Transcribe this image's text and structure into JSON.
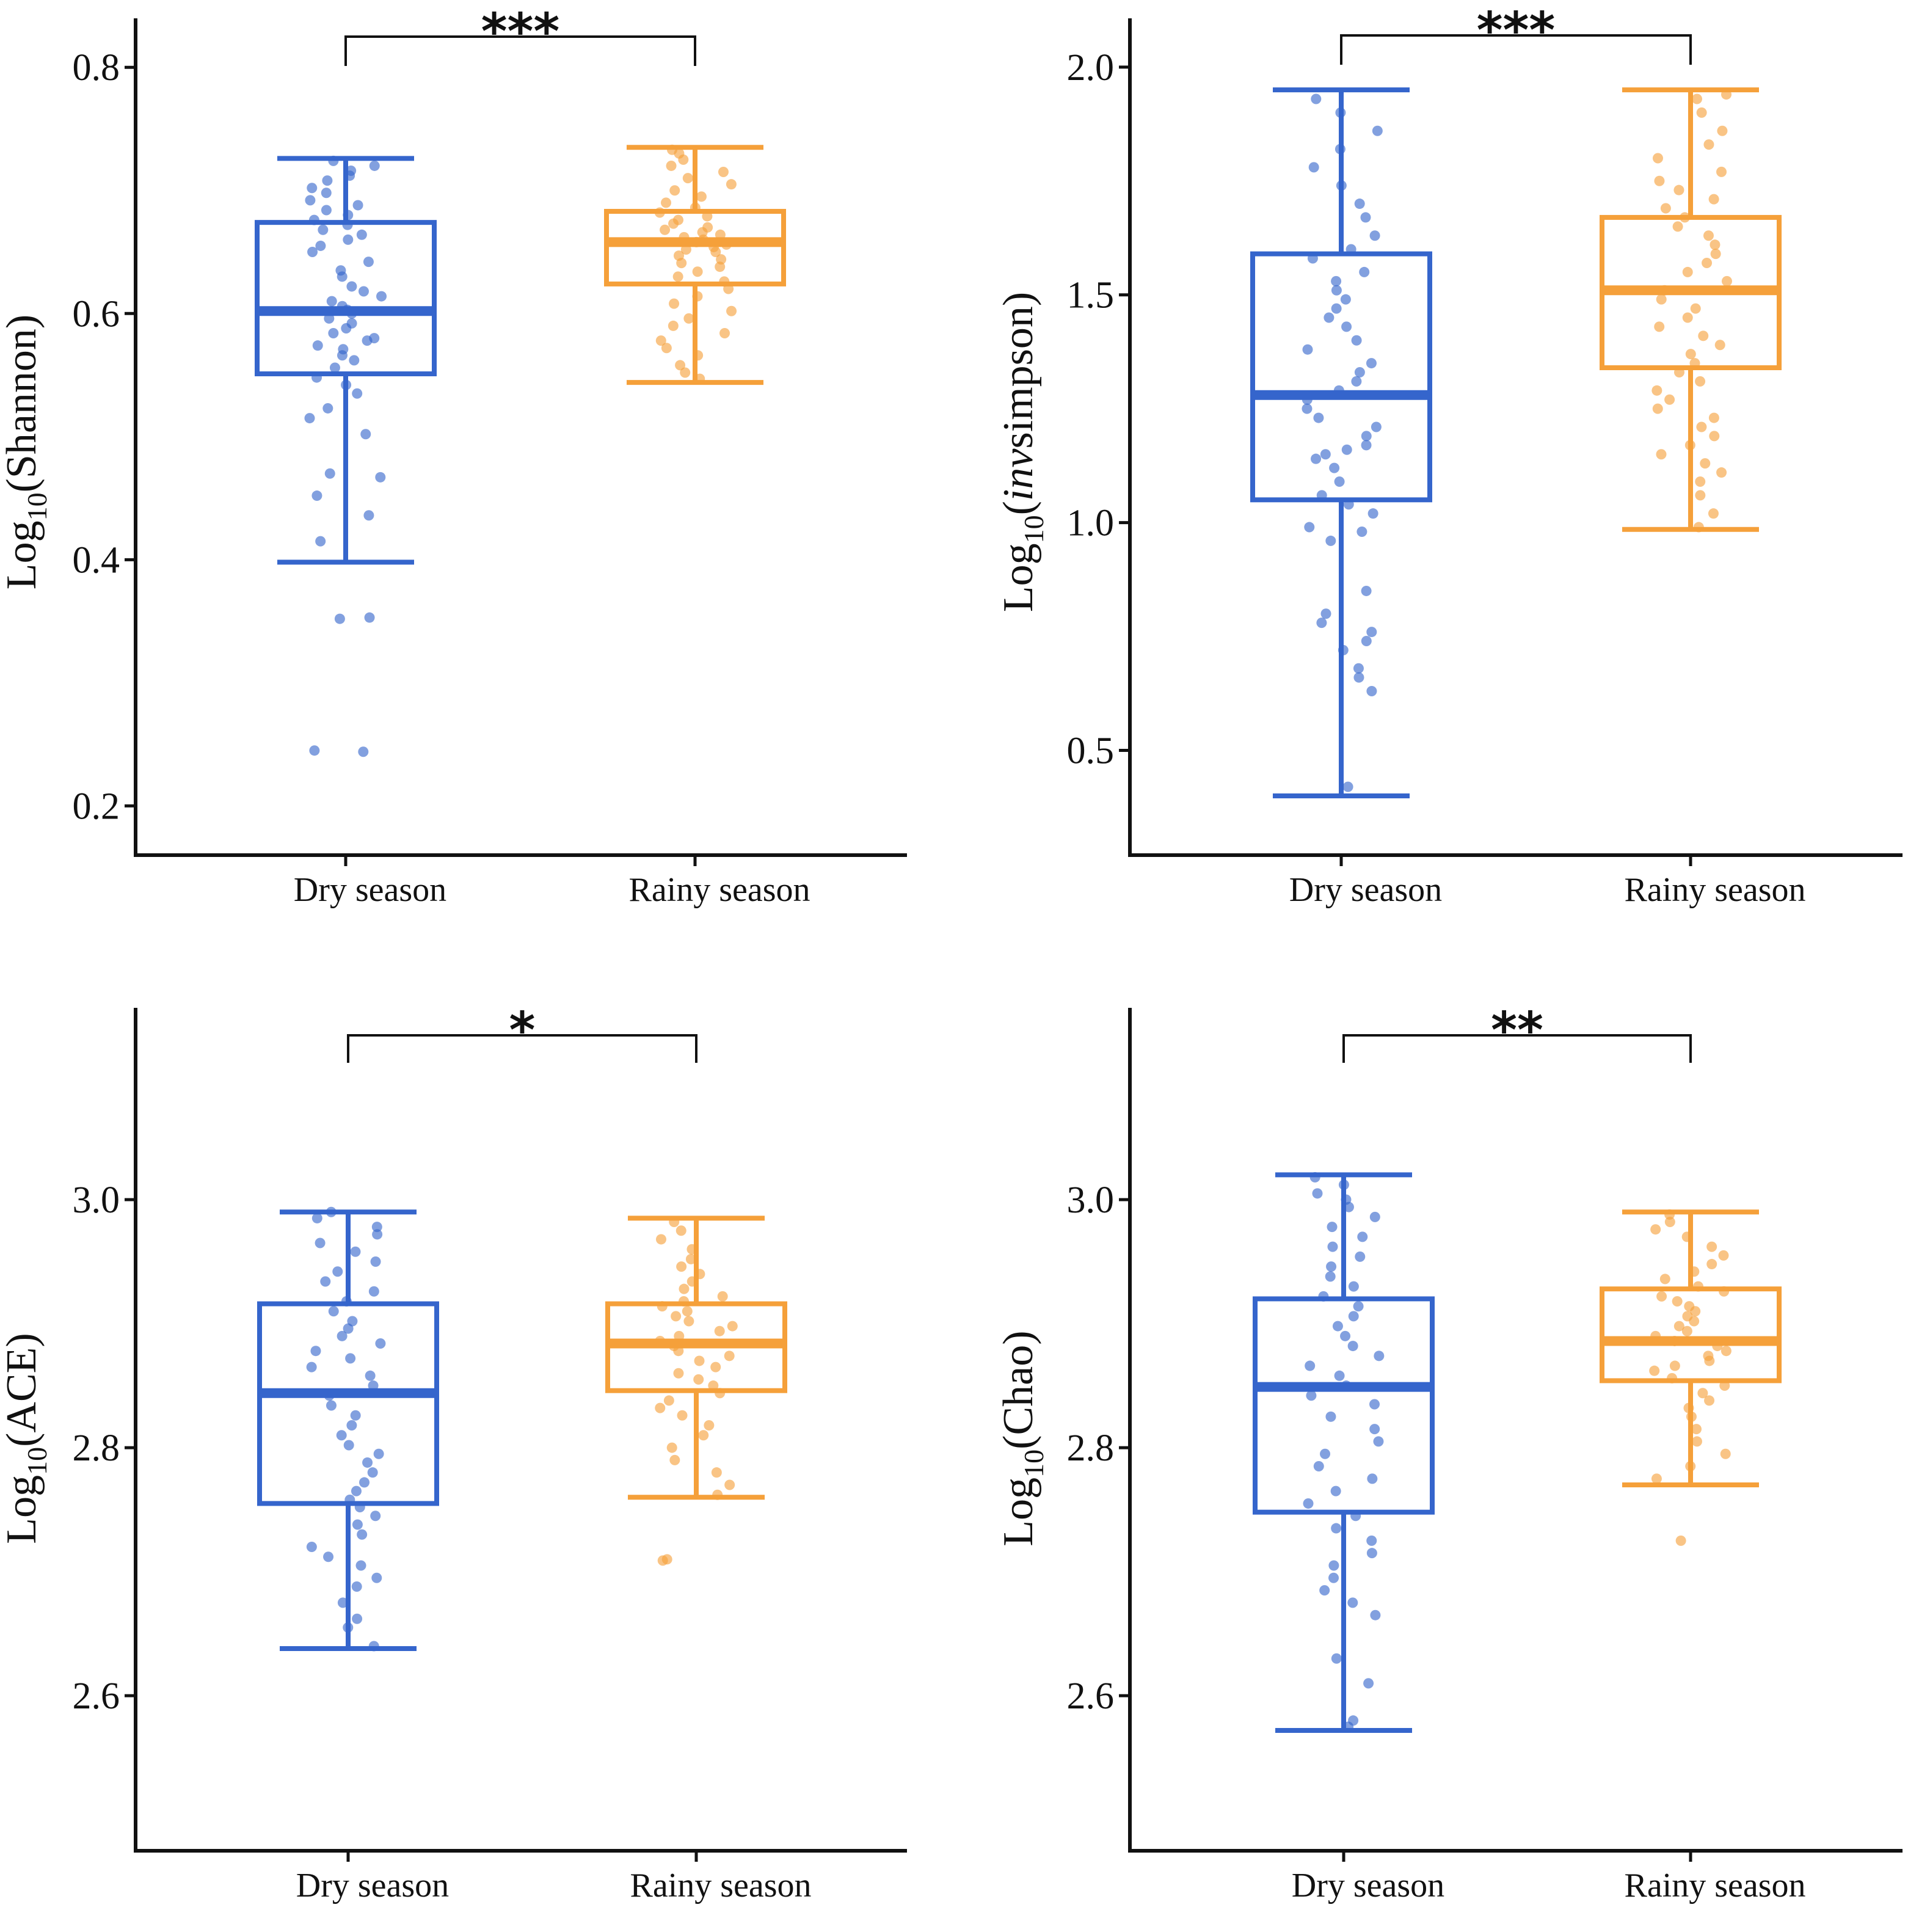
{
  "colors": {
    "dry": "#3565cc",
    "rainy": "#f5a03a",
    "axis": "#111111"
  },
  "chart_data": [
    {
      "type": "box",
      "ylabel_prefix": "Log",
      "ylabel_sub": "10",
      "ylabel_name": "(Shannon)",
      "ylabel_italic": false,
      "categories": [
        "Dry season",
        "Rainy season"
      ],
      "ylim": [
        0.16,
        0.815
      ],
      "yticks": [
        0.2,
        0.4,
        0.6,
        0.8
      ],
      "ytick_labels": [
        "0.2",
        "0.4",
        "0.6",
        "0.8"
      ],
      "significance": "***",
      "series": [
        {
          "name": "Dry season",
          "whisker_low": 0.398,
          "q1": 0.551,
          "median": 0.602,
          "q3": 0.674,
          "whisker_high": 0.726,
          "points": [
            0.244,
            0.245,
            0.352,
            0.353,
            0.415,
            0.436,
            0.452,
            0.467,
            0.47,
            0.502,
            0.515,
            0.523,
            0.535,
            0.542,
            0.548,
            0.556,
            0.562,
            0.566,
            0.571,
            0.574,
            0.578,
            0.58,
            0.584,
            0.588,
            0.592,
            0.596,
            0.6,
            0.603,
            0.606,
            0.61,
            0.614,
            0.618,
            0.622,
            0.63,
            0.635,
            0.642,
            0.65,
            0.655,
            0.66,
            0.664,
            0.668,
            0.672,
            0.676,
            0.68,
            0.684,
            0.688,
            0.692,
            0.698,
            0.702,
            0.708,
            0.712,
            0.716,
            0.72,
            0.724
          ]
        },
        {
          "name": "Rainy season",
          "whisker_low": 0.544,
          "q1": 0.624,
          "median": 0.658,
          "q3": 0.683,
          "whisker_high": 0.735,
          "points": [
            0.547,
            0.552,
            0.558,
            0.566,
            0.572,
            0.578,
            0.584,
            0.59,
            0.596,
            0.602,
            0.608,
            0.614,
            0.62,
            0.626,
            0.63,
            0.634,
            0.638,
            0.641,
            0.644,
            0.647,
            0.65,
            0.652,
            0.654,
            0.656,
            0.658,
            0.66,
            0.662,
            0.664,
            0.666,
            0.668,
            0.67,
            0.673,
            0.676,
            0.679,
            0.682,
            0.686,
            0.69,
            0.695,
            0.7,
            0.705,
            0.71,
            0.715,
            0.72,
            0.725,
            0.73,
            0.733
          ]
        }
      ]
    },
    {
      "type": "box",
      "ylabel_prefix": "Log",
      "ylabel_sub": "10",
      "ylabel_name": "(invsimpson)",
      "ylabel_italic": true,
      "categories": [
        "Dry season",
        "Rainy season"
      ],
      "ylim": [
        0.27,
        2.04
      ],
      "yticks": [
        0.5,
        1.0,
        1.5,
        2.0
      ],
      "ytick_labels": [
        "0.5",
        "1.0",
        "1.5",
        "2.0"
      ],
      "significance": "***",
      "series": [
        {
          "name": "Dry season",
          "whisker_low": 0.4,
          "q1": 1.05,
          "median": 1.28,
          "q3": 1.59,
          "whisker_high": 1.95,
          "points": [
            0.42,
            0.63,
            0.66,
            0.68,
            0.72,
            0.74,
            0.76,
            0.78,
            0.8,
            0.85,
            0.96,
            0.98,
            0.99,
            1.02,
            1.04,
            1.06,
            1.09,
            1.12,
            1.14,
            1.15,
            1.16,
            1.17,
            1.19,
            1.21,
            1.23,
            1.25,
            1.27,
            1.29,
            1.31,
            1.33,
            1.35,
            1.38,
            1.4,
            1.43,
            1.45,
            1.47,
            1.49,
            1.51,
            1.53,
            1.55,
            1.58,
            1.6,
            1.63,
            1.67,
            1.7,
            1.74,
            1.78,
            1.82,
            1.86,
            1.9,
            1.93
          ]
        },
        {
          "name": "Rainy season",
          "whisker_low": 0.985,
          "q1": 1.34,
          "median": 1.51,
          "q3": 1.67,
          "whisker_high": 1.95,
          "points": [
            0.99,
            1.02,
            1.06,
            1.09,
            1.11,
            1.13,
            1.15,
            1.17,
            1.19,
            1.21,
            1.23,
            1.25,
            1.27,
            1.29,
            1.31,
            1.33,
            1.35,
            1.37,
            1.39,
            1.41,
            1.43,
            1.45,
            1.47,
            1.49,
            1.51,
            1.53,
            1.55,
            1.57,
            1.59,
            1.61,
            1.63,
            1.65,
            1.67,
            1.69,
            1.71,
            1.73,
            1.75,
            1.77,
            1.8,
            1.83,
            1.86,
            1.9,
            1.93,
            1.94
          ]
        }
      ]
    },
    {
      "type": "box",
      "ylabel_prefix": "Log",
      "ylabel_sub": "10",
      "ylabel_name": "(ACE)",
      "ylabel_italic": false,
      "categories": [
        "Dry season",
        "Rainy season"
      ],
      "ylim": [
        2.475,
        3.13
      ],
      "yticks": [
        2.6,
        2.8,
        3.0
      ],
      "ytick_labels": [
        "2.6",
        "2.8",
        "3.0"
      ],
      "significance": "*",
      "series": [
        {
          "name": "Dry season",
          "whisker_low": 2.638,
          "q1": 2.755,
          "median": 2.844,
          "q3": 2.916,
          "whisker_high": 2.99,
          "points": [
            2.64,
            2.655,
            2.662,
            2.675,
            2.688,
            2.695,
            2.705,
            2.712,
            2.72,
            2.73,
            2.738,
            2.745,
            2.752,
            2.758,
            2.765,
            2.772,
            2.78,
            2.788,
            2.795,
            2.802,
            2.81,
            2.818,
            2.826,
            2.834,
            2.842,
            2.85,
            2.858,
            2.865,
            2.872,
            2.878,
            2.884,
            2.89,
            2.896,
            2.902,
            2.91,
            2.918,
            2.926,
            2.934,
            2.942,
            2.95,
            2.958,
            2.965,
            2.972,
            2.978,
            2.985,
            2.99
          ]
        },
        {
          "name": "Rainy season",
          "whisker_low": 2.76,
          "q1": 2.846,
          "median": 2.884,
          "q3": 2.916,
          "whisker_high": 2.985,
          "points": [
            2.709,
            2.71,
            2.762,
            2.77,
            2.78,
            2.79,
            2.8,
            2.81,
            2.818,
            2.826,
            2.832,
            2.838,
            2.844,
            2.85,
            2.855,
            2.86,
            2.865,
            2.87,
            2.874,
            2.878,
            2.882,
            2.886,
            2.89,
            2.894,
            2.898,
            2.902,
            2.906,
            2.91,
            2.914,
            2.918,
            2.922,
            2.928,
            2.934,
            2.94,
            2.946,
            2.952,
            2.96,
            2.968,
            2.975,
            2.982
          ]
        }
      ]
    },
    {
      "type": "box",
      "ylabel_prefix": "Log",
      "ylabel_sub": "10",
      "ylabel_name": "(Chao)",
      "ylabel_italic": false,
      "categories": [
        "Dry season",
        "Rainy season"
      ],
      "ylim": [
        2.475,
        3.13
      ],
      "yticks": [
        2.6,
        2.8,
        3.0
      ],
      "ytick_labels": [
        "2.6",
        "2.8",
        "3.0"
      ],
      "significance": "**",
      "series": [
        {
          "name": "Dry season",
          "whisker_low": 2.572,
          "q1": 2.748,
          "median": 2.849,
          "q3": 2.92,
          "whisker_high": 3.02,
          "points": [
            2.575,
            2.58,
            2.61,
            2.63,
            2.665,
            2.675,
            2.685,
            2.695,
            2.705,
            2.715,
            2.725,
            2.735,
            2.745,
            2.755,
            2.765,
            2.775,
            2.785,
            2.795,
            2.805,
            2.815,
            2.825,
            2.835,
            2.842,
            2.85,
            2.858,
            2.866,
            2.874,
            2.882,
            2.89,
            2.898,
            2.906,
            2.914,
            2.922,
            2.93,
            2.938,
            2.946,
            2.954,
            2.962,
            2.97,
            2.978,
            2.986,
            2.994,
            3.0,
            3.005,
            3.012,
            3.018
          ]
        },
        {
          "name": "Rainy season",
          "whisker_low": 2.77,
          "q1": 2.854,
          "median": 2.886,
          "q3": 2.928,
          "whisker_high": 2.99,
          "points": [
            2.725,
            2.775,
            2.785,
            2.795,
            2.805,
            2.815,
            2.825,
            2.832,
            2.838,
            2.844,
            2.85,
            2.856,
            2.862,
            2.866,
            2.87,
            2.874,
            2.878,
            2.882,
            2.886,
            2.89,
            2.894,
            2.898,
            2.902,
            2.906,
            2.91,
            2.914,
            2.918,
            2.922,
            2.926,
            2.93,
            2.936,
            2.942,
            2.948,
            2.955,
            2.962,
            2.97,
            2.976,
            2.982,
            2.988
          ]
        }
      ]
    }
  ]
}
